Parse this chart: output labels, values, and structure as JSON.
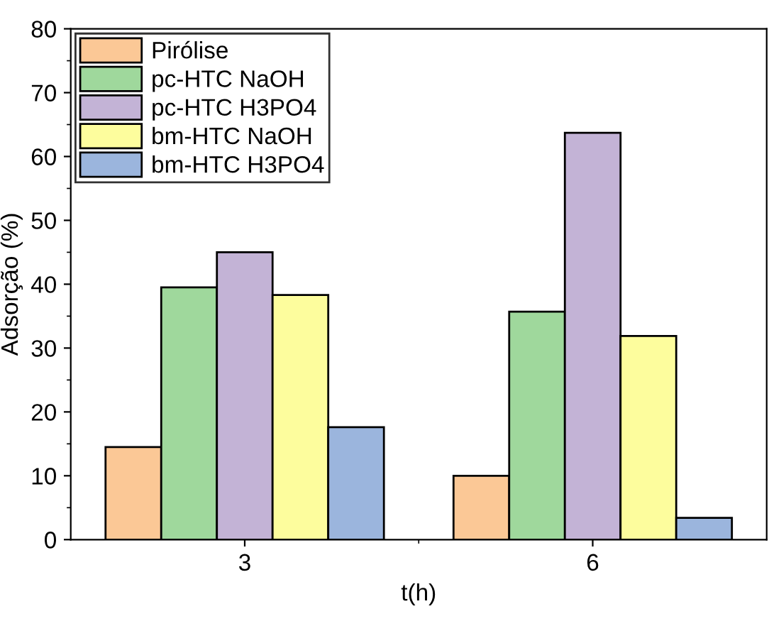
{
  "chart_data": {
    "type": "bar",
    "xlabel": "t(h)",
    "ylabel": "Adsorção (%)",
    "categories": [
      "3",
      "6"
    ],
    "series": [
      {
        "name": "Pirólise",
        "color": "#fbc896",
        "values": [
          14.5,
          10.0
        ]
      },
      {
        "name": "pc-HTC NaOH",
        "color": "#9fd89c",
        "values": [
          39.5,
          35.7
        ]
      },
      {
        "name": "pc-HTC H3PO4",
        "color": "#c3b3d6",
        "values": [
          45.0,
          63.7
        ]
      },
      {
        "name": "bm-HTC NaOH",
        "color": "#fdfd9d",
        "values": [
          38.3,
          31.9
        ]
      },
      {
        "name": "bm-HTC H3PO4",
        "color": "#9bb5dd",
        "values": [
          17.6,
          3.4
        ]
      }
    ],
    "ylim": [
      0,
      80
    ],
    "yticks": [
      0,
      10,
      20,
      30,
      40,
      50,
      60,
      70,
      80
    ],
    "grid": false,
    "legend": "top left"
  }
}
